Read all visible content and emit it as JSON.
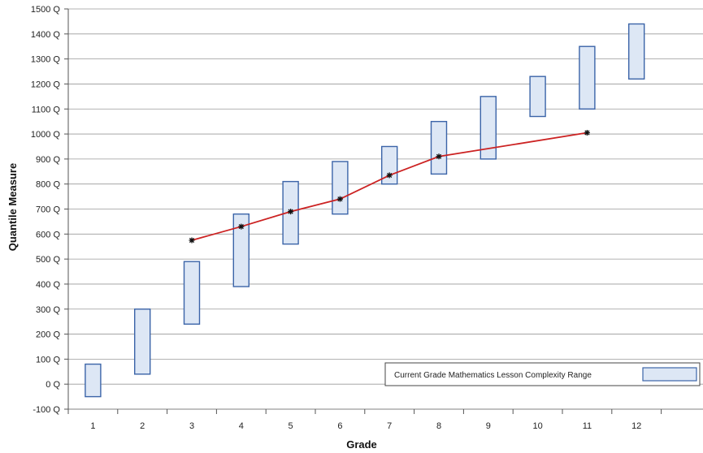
{
  "chart_data": {
    "type": "bar",
    "xlabel": "Grade",
    "ylabel": "Quantile Measure",
    "categories": [
      "1",
      "2",
      "3",
      "4",
      "5",
      "6",
      "7",
      "8",
      "9",
      "10",
      "11",
      "12"
    ],
    "ylim": [
      -100,
      1500
    ],
    "y_ticks": [
      -100,
      0,
      100,
      200,
      300,
      400,
      500,
      600,
      700,
      800,
      900,
      1000,
      1100,
      1200,
      1300,
      1400,
      1500
    ],
    "y_tick_suffix": "Q",
    "grid": "horizontal",
    "legend": {
      "position": "bottom-right",
      "label": "Current Grade Mathematics Lesson Complexity Range"
    },
    "series": [
      {
        "type": "range",
        "name": "Current Grade Mathematics Lesson Complexity Range",
        "low": [
          -50,
          40,
          240,
          390,
          560,
          680,
          800,
          840,
          900,
          1070,
          1100,
          1220
        ],
        "high": [
          80,
          300,
          490,
          680,
          810,
          890,
          950,
          1050,
          1150,
          1230,
          1350,
          1440
        ]
      },
      {
        "type": "line",
        "x": [
          "3",
          "4",
          "5",
          "6",
          "7",
          "8",
          "11"
        ],
        "values": [
          575,
          630,
          690,
          740,
          835,
          910,
          1005
        ]
      }
    ],
    "colors": {
      "range_fill": "#dde7f5",
      "range_stroke": "#3b64a8",
      "line": "#cc2222",
      "marker": "#111111",
      "grid": "#9a9a9a"
    }
  }
}
